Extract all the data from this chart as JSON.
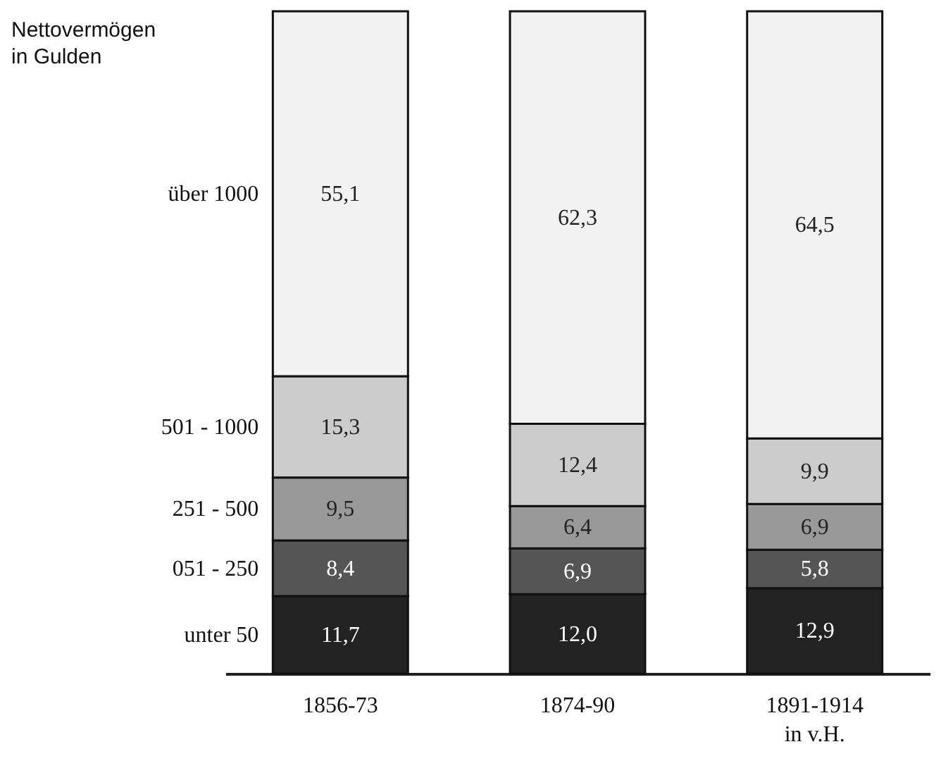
{
  "chart_data": {
    "type": "bar",
    "stacked": true,
    "legend_title": "Nettovermögen in Gulden",
    "categories": [
      "1856-73",
      "1874-90",
      "1891-1914"
    ],
    "series": [
      {
        "name": "unter 50",
        "color": "#222222",
        "values": [
          11.7,
          12.0,
          12.9
        ],
        "value_labels": [
          "11,7",
          "12,0",
          "12,9"
        ]
      },
      {
        "name": "051 - 250",
        "color": "#555555",
        "values": [
          8.4,
          6.9,
          5.8
        ],
        "value_labels": [
          "8,4",
          "6,9",
          "5,8"
        ]
      },
      {
        "name": "251 - 500",
        "color": "#999999",
        "values": [
          9.5,
          6.4,
          6.9
        ],
        "value_labels": [
          "9,5",
          "6,4",
          "6,9"
        ]
      },
      {
        "name": "501 - 1000",
        "color": "#cccccc",
        "values": [
          15.3,
          12.4,
          9.9
        ],
        "value_labels": [
          "15,3",
          "12,4",
          "9,9"
        ]
      },
      {
        "name": "über 1000",
        "color": "#f2f2f2",
        "values": [
          55.1,
          62.3,
          64.5
        ],
        "value_labels": [
          "55,1",
          "62,3",
          "64,5"
        ]
      }
    ],
    "annotations": [
      "in v.H."
    ]
  }
}
